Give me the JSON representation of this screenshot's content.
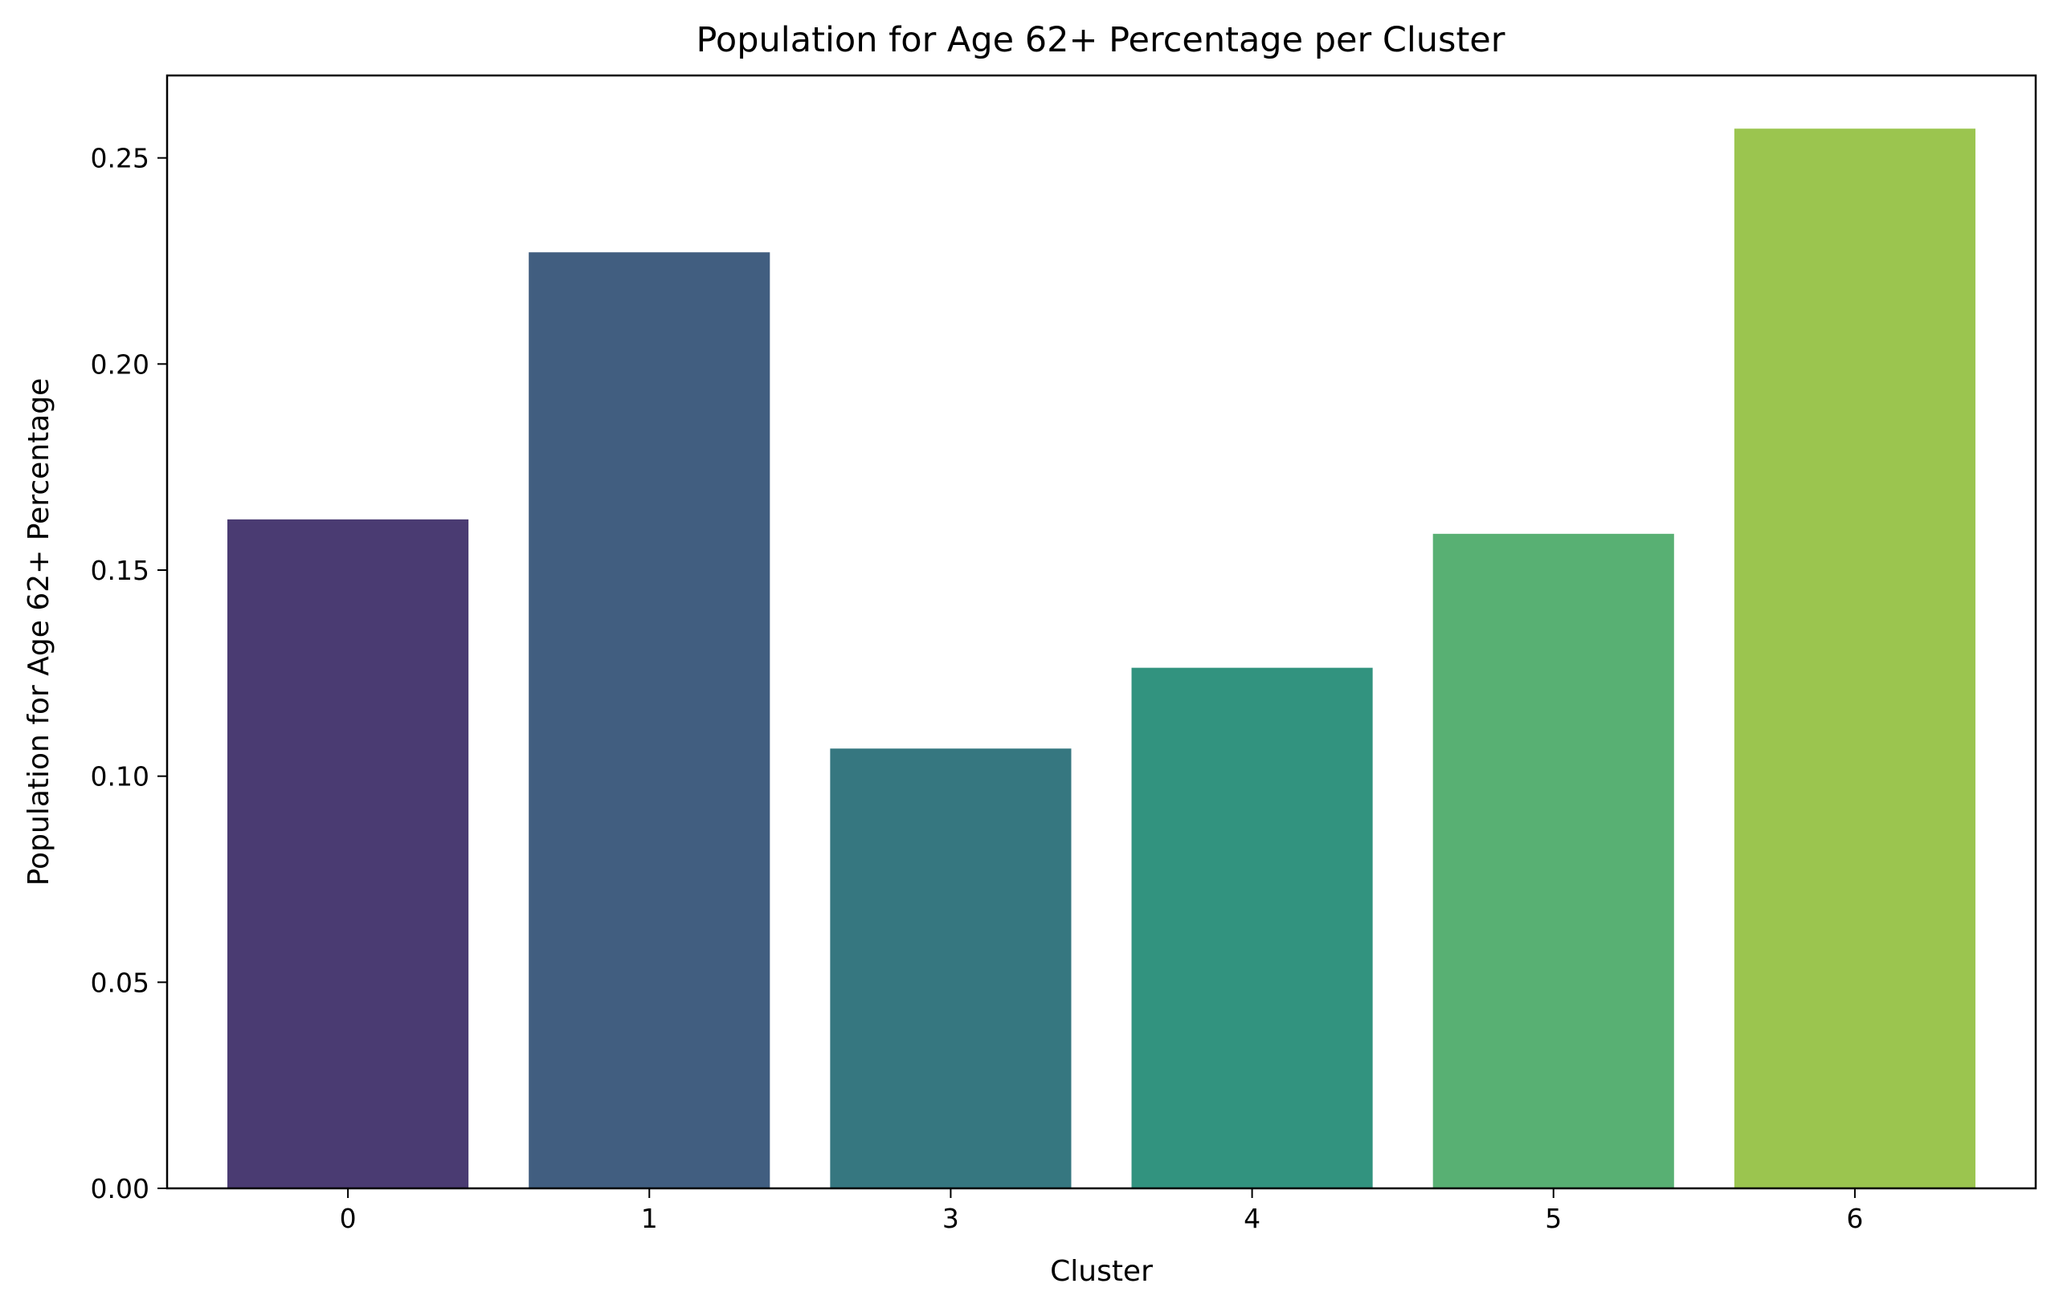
{
  "chart_data": {
    "type": "bar",
    "title": "Population for Age 62+ Percentage per Cluster",
    "xlabel": "Cluster",
    "ylabel": "Population for Age 62+ Percentage",
    "categories": [
      "0",
      "1",
      "3",
      "4",
      "5",
      "6"
    ],
    "values": [
      0.1623,
      0.2271,
      0.1067,
      0.1263,
      0.1588,
      0.2571
    ],
    "colors": [
      "#4a3b72",
      "#415e80",
      "#367780",
      "#32937f",
      "#58b073",
      "#9bc54f"
    ],
    "ylim": [
      0,
      0.27
    ],
    "yticks": [
      0.0,
      0.05,
      0.1,
      0.15,
      0.2,
      0.25
    ],
    "ytick_labels": [
      "0.00",
      "0.05",
      "0.10",
      "0.15",
      "0.20",
      "0.25"
    ],
    "grid": false,
    "legend": "none"
  }
}
